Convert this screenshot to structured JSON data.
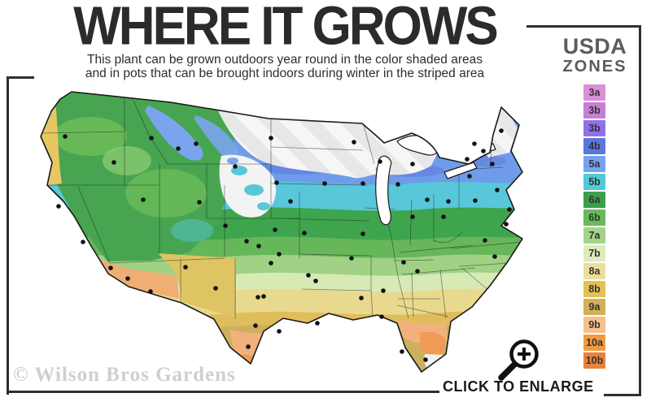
{
  "header": {
    "title": "WHERE IT GROWS",
    "subtitle_line1": "This plant can be grown outdoors year round in the color shaded areas",
    "subtitle_line2": "and in pots that can be brought indoors during winter in the striped area"
  },
  "legend": {
    "title_line1": "USDA",
    "title_line2": "ZONES",
    "zones": [
      {
        "label": "3a",
        "color": "#da8fd8"
      },
      {
        "label": "3b",
        "color": "#c77fd4"
      },
      {
        "label": "3b",
        "color": "#8f72e8"
      },
      {
        "label": "4b",
        "color": "#5b76dc"
      },
      {
        "label": "5a",
        "color": "#74a3ef"
      },
      {
        "label": "5b",
        "color": "#52c9d6"
      },
      {
        "label": "6a",
        "color": "#3aa04b"
      },
      {
        "label": "6b",
        "color": "#68bb59"
      },
      {
        "label": "7a",
        "color": "#a5d489"
      },
      {
        "label": "7b",
        "color": "#dcecbc"
      },
      {
        "label": "8a",
        "color": "#ecdf9c"
      },
      {
        "label": "8b",
        "color": "#e4c054"
      },
      {
        "label": "9a",
        "color": "#d0b156"
      },
      {
        "label": "9b",
        "color": "#f5c18c"
      },
      {
        "label": "10a",
        "color": "#f09a43"
      },
      {
        "label": "10b",
        "color": "#e8833b"
      }
    ]
  },
  "footer": {
    "watermark": "© Wilson Bros Gardens",
    "enlarge_cta": "CLICK TO ENLARGE"
  },
  "icons": {
    "magnifier": "zoom-in-magnifier-icon"
  },
  "map": {
    "region": "Continental United States",
    "city_dots": [
      [
        44,
        62
      ],
      [
        36,
        148
      ],
      [
        66,
        192
      ],
      [
        100,
        224
      ],
      [
        104,
        94
      ],
      [
        140,
        140
      ],
      [
        150,
        64
      ],
      [
        183,
        77
      ],
      [
        205,
        71
      ],
      [
        253,
        99
      ],
      [
        297,
        64
      ],
      [
        304,
        119
      ],
      [
        209,
        143
      ],
      [
        241,
        172
      ],
      [
        267,
        191
      ],
      [
        121,
        237
      ],
      [
        149,
        253
      ],
      [
        192,
        223
      ],
      [
        229,
        249
      ],
      [
        302,
        177
      ],
      [
        338,
        181
      ],
      [
        321,
        142
      ],
      [
        297,
        218
      ],
      [
        282,
        197
      ],
      [
        343,
        233
      ],
      [
        307,
        207
      ],
      [
        278,
        295
      ],
      [
        269,
        321
      ],
      [
        307,
        302
      ],
      [
        352,
        240
      ],
      [
        281,
        260
      ],
      [
        288,
        259
      ],
      [
        354,
        292
      ],
      [
        396,
        212
      ],
      [
        410,
        182
      ],
      [
        408,
        261
      ],
      [
        435,
        252
      ],
      [
        433,
        284
      ],
      [
        460,
        217
      ],
      [
        477,
        228
      ],
      [
        458,
        327
      ],
      [
        487,
        337
      ],
      [
        363,
        120
      ],
      [
        410,
        120
      ],
      [
        399,
        69
      ],
      [
        431,
        93
      ],
      [
        453,
        121
      ],
      [
        471,
        161
      ],
      [
        489,
        140
      ],
      [
        471,
        96
      ],
      [
        509,
        161
      ],
      [
        515,
        142
      ],
      [
        548,
        141
      ],
      [
        541,
        111
      ],
      [
        538,
        90
      ],
      [
        547,
        71
      ],
      [
        558,
        80
      ],
      [
        569,
        96
      ],
      [
        575,
        128
      ],
      [
        590,
        152
      ],
      [
        586,
        170
      ],
      [
        560,
        190
      ],
      [
        572,
        210
      ],
      [
        580,
        55
      ]
    ]
  }
}
